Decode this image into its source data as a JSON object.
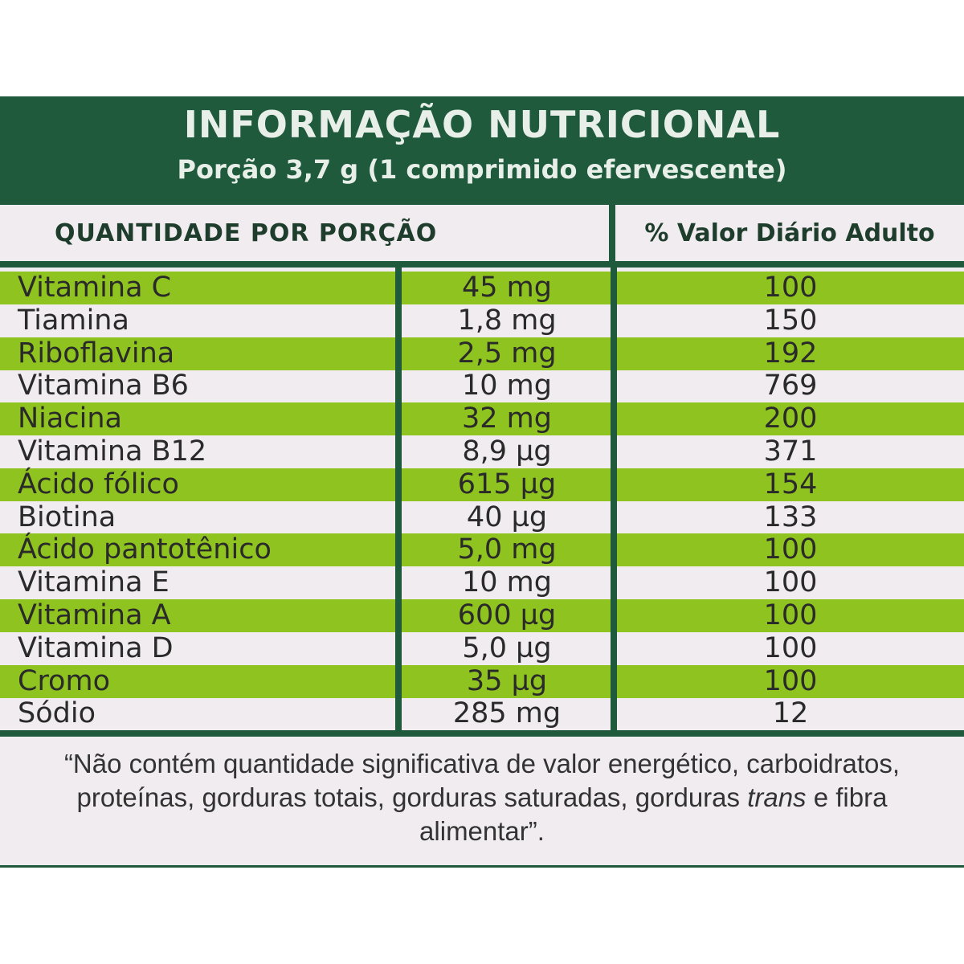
{
  "header": {
    "title": "INFORMAÇÃO NUTRICIONAL",
    "serving": "Porção 3,7 g (1 comprimido efervescente)"
  },
  "columns": {
    "quantity": "QUANTIDADE POR PORÇÃO",
    "daily_value": "% Valor Diário Adulto"
  },
  "rows": [
    {
      "name": "Vitamina C",
      "amount": "45 mg",
      "dv": "100"
    },
    {
      "name": "Tiamina",
      "amount": "1,8 mg",
      "dv": "150"
    },
    {
      "name": "Riboflavina",
      "amount": "2,5 mg",
      "dv": "192"
    },
    {
      "name": "Vitamina B6",
      "amount": "10 mg",
      "dv": "769"
    },
    {
      "name": "Niacina",
      "amount": "32 mg",
      "dv": "200"
    },
    {
      "name": "Vitamina B12",
      "amount": "8,9 µg",
      "dv": "371"
    },
    {
      "name": "Ácido fólico",
      "amount": "615 µg",
      "dv": "154"
    },
    {
      "name": "Biotina",
      "amount": "40 µg",
      "dv": "133"
    },
    {
      "name": "Ácido pantotênico",
      "amount": "5,0 mg",
      "dv": "100"
    },
    {
      "name": "Vitamina E",
      "amount": "10 mg",
      "dv": "100"
    },
    {
      "name": "Vitamina A",
      "amount": "600 µg",
      "dv": "100"
    },
    {
      "name": "Vitamina D",
      "amount": "5,0 µg",
      "dv": "100"
    },
    {
      "name": "Cromo",
      "amount": "35 µg",
      "dv": "100"
    },
    {
      "name": "Sódio",
      "amount": "285 mg",
      "dv": "12"
    }
  ],
  "footnote": {
    "part1": "“Não contém quantidade significativa de valor energético, carboidratos, proteínas, gorduras totais, gorduras saturadas, gorduras ",
    "italic": "trans",
    "part2": " e fibra alimentar”."
  },
  "colors": {
    "panel": "#1f5a3c",
    "band": "#8fc31f",
    "background": "#f1ecef"
  }
}
